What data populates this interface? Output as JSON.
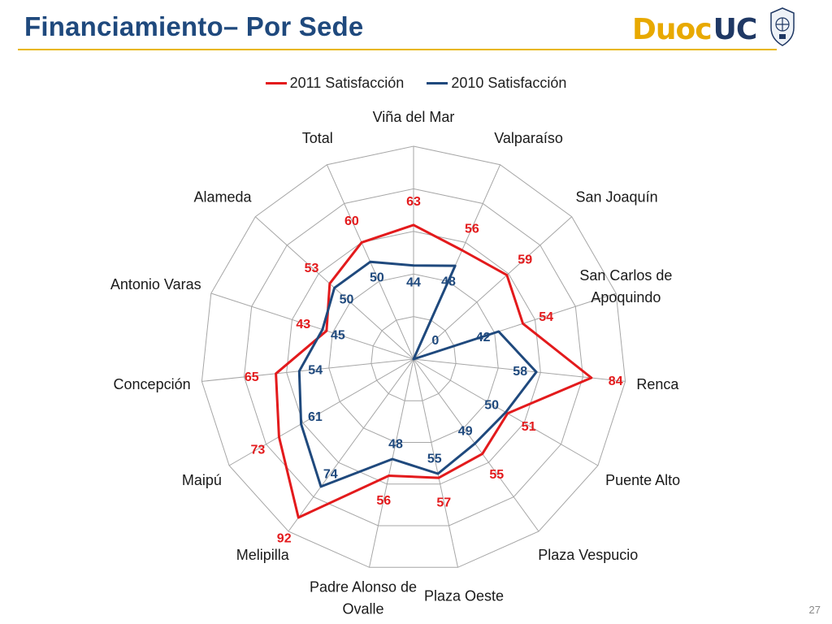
{
  "slide": {
    "title": "Financiamiento– Por Sede",
    "logo_duoc": "Duoc",
    "logo_uc": "UC",
    "page_number": "27"
  },
  "colors": {
    "title": "#1f497d",
    "rule": "#e8b600",
    "series_2011": "#e31a1c",
    "series_2010": "#1f497d",
    "grid": "#9a9a9a"
  },
  "chart_data": {
    "type": "radar",
    "title": "",
    "categories": [
      "Viña del Mar",
      "Valparaíso",
      "San Joaquín",
      "San Carlos de Apoquindo",
      "Renca",
      "Puente Alto",
      "Plaza Vespucio",
      "Plaza Oeste",
      "Padre Alonso de Ovalle",
      "Melipilla",
      "Maipú",
      "Concepción",
      "Antonio Varas",
      "Alameda",
      "Total"
    ],
    "series": [
      {
        "name": "2011 Satisfacción",
        "color": "#e31a1c",
        "values": [
          63,
          56,
          59,
          54,
          84,
          51,
          55,
          57,
          56,
          92,
          73,
          65,
          43,
          53,
          60
        ]
      },
      {
        "name": "2010 Satisfacción",
        "color": "#1f497d",
        "values": [
          44,
          48,
          0,
          42,
          58,
          50,
          49,
          55,
          48,
          74,
          61,
          54,
          45,
          50,
          50
        ]
      }
    ],
    "rlim": [
      0,
      100
    ],
    "grid": true,
    "legend_position": "top",
    "data_labels": true
  }
}
